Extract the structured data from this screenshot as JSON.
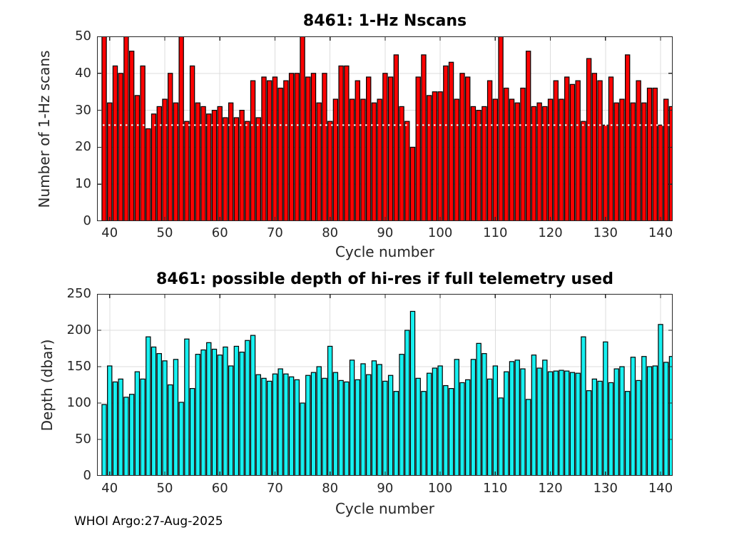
{
  "figure": {
    "footer": "WHOI Argo:27-Aug-2025",
    "background": "#FFFFFF",
    "axis_color": "#262626",
    "grid_color": "#DCDCDC"
  },
  "chart_data": [
    {
      "type": "bar",
      "title": "8461: 1-Hz Nscans",
      "xlabel": "Cycle number",
      "ylabel": "Number of 1-Hz scans",
      "bar_color": "#FA0202",
      "edge_color": "#000000",
      "xlim": [
        37.7,
        142.2
      ],
      "ylim": [
        0,
        50
      ],
      "xticks": [
        40,
        50,
        60,
        70,
        80,
        90,
        100,
        110,
        120,
        130,
        140
      ],
      "yticks": [
        0,
        10,
        20,
        30,
        40,
        50
      ],
      "grid": true,
      "legend": "none",
      "bar_width_cycles": 0.8,
      "threshold_line": {
        "y": 26,
        "color": "#FFFFFF",
        "style": "dotted"
      },
      "x": [
        39,
        40,
        41,
        42,
        43,
        44,
        45,
        46,
        47,
        48,
        49,
        50,
        51,
        52,
        53,
        54,
        55,
        56,
        57,
        58,
        59,
        60,
        61,
        62,
        63,
        64,
        65,
        66,
        67,
        68,
        69,
        70,
        71,
        72,
        73,
        74,
        75,
        76,
        77,
        78,
        79,
        80,
        81,
        82,
        83,
        84,
        85,
        86,
        87,
        88,
        89,
        90,
        91,
        92,
        93,
        94,
        95,
        96,
        97,
        98,
        99,
        100,
        101,
        102,
        103,
        104,
        105,
        106,
        107,
        108,
        109,
        110,
        111,
        112,
        113,
        114,
        115,
        116,
        117,
        118,
        119,
        120,
        121,
        122,
        123,
        124,
        125,
        126,
        127,
        128,
        129,
        130,
        131,
        132,
        133,
        134,
        135,
        136,
        137,
        138,
        139,
        140,
        141,
        142
      ],
      "values": [
        50,
        32,
        42,
        40,
        50,
        46,
        34,
        42,
        25,
        29,
        31,
        33,
        40,
        32,
        50,
        27,
        42,
        32,
        31,
        29,
        30,
        31,
        28,
        32,
        28,
        30,
        27,
        38,
        28,
        39,
        38,
        39,
        36,
        38,
        40,
        40,
        50,
        39,
        40,
        32,
        40,
        27,
        33,
        42,
        42,
        33,
        38,
        33,
        39,
        32,
        33,
        40,
        39,
        45,
        31,
        27,
        20,
        39,
        45,
        34,
        35,
        35,
        42,
        43,
        33,
        40,
        39,
        31,
        30,
        31,
        38,
        33,
        50,
        36,
        33,
        32,
        36,
        46,
        31,
        32,
        31,
        33,
        38,
        33,
        39,
        37,
        38,
        27,
        44,
        40,
        38,
        26,
        39,
        32,
        33,
        45,
        32,
        38,
        32,
        36,
        36,
        26,
        33,
        31
      ]
    },
    {
      "type": "bar",
      "title": "8461: possible depth of hi-res if full telemetry used",
      "xlabel": "Cycle number",
      "ylabel": "Depth (dbar)",
      "bar_color": "#17F0F0",
      "edge_color": "#000000",
      "xlim": [
        37.7,
        142.2
      ],
      "ylim": [
        0,
        250
      ],
      "xticks": [
        40,
        50,
        60,
        70,
        80,
        90,
        100,
        110,
        120,
        130,
        140
      ],
      "yticks": [
        0,
        50,
        100,
        150,
        200,
        250
      ],
      "grid": true,
      "legend": "none",
      "bar_width_cycles": 0.8,
      "threshold_line": null,
      "x": [
        39,
        40,
        41,
        42,
        43,
        44,
        45,
        46,
        47,
        48,
        49,
        50,
        51,
        52,
        53,
        54,
        55,
        56,
        57,
        58,
        59,
        60,
        61,
        62,
        63,
        64,
        65,
        66,
        67,
        68,
        69,
        70,
        71,
        72,
        73,
        74,
        75,
        76,
        77,
        78,
        79,
        80,
        81,
        82,
        83,
        84,
        85,
        86,
        87,
        88,
        89,
        90,
        91,
        92,
        93,
        94,
        95,
        96,
        97,
        98,
        99,
        100,
        101,
        102,
        103,
        104,
        105,
        106,
        107,
        108,
        109,
        110,
        111,
        112,
        113,
        114,
        115,
        116,
        117,
        118,
        119,
        120,
        121,
        122,
        123,
        124,
        125,
        126,
        127,
        128,
        129,
        130,
        131,
        132,
        133,
        134,
        135,
        136,
        137,
        138,
        139,
        140,
        141,
        142
      ],
      "values": [
        98,
        151,
        129,
        133,
        108,
        112,
        143,
        133,
        191,
        177,
        168,
        158,
        125,
        160,
        101,
        188,
        120,
        167,
        173,
        183,
        174,
        166,
        177,
        151,
        178,
        170,
        186,
        193,
        139,
        134,
        130,
        140,
        147,
        140,
        136,
        132,
        100,
        138,
        142,
        150,
        134,
        178,
        142,
        131,
        129,
        159,
        132,
        154,
        139,
        158,
        153,
        130,
        138,
        116,
        167,
        200,
        226,
        134,
        116,
        141,
        148,
        151,
        124,
        120,
        160,
        128,
        132,
        160,
        182,
        168,
        133,
        151,
        107,
        143,
        157,
        159,
        147,
        105,
        166,
        148,
        159,
        143,
        144,
        145,
        144,
        142,
        141,
        191,
        117,
        133,
        130,
        184,
        128,
        147,
        150,
        116,
        163,
        131,
        164,
        150,
        151,
        208,
        156,
        164
      ]
    }
  ]
}
